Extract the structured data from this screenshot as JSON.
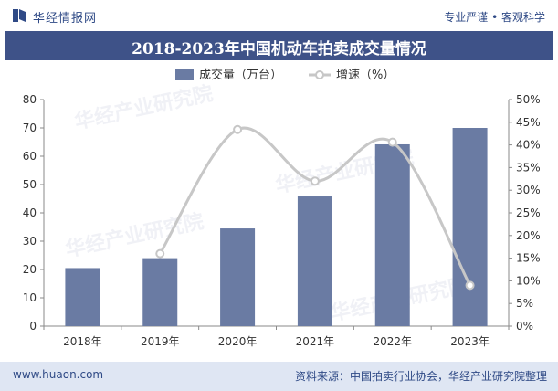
{
  "header": {
    "brand": "华经情报网",
    "slogan": "专业严谨 • 客观科学"
  },
  "footer": {
    "url": "www.huaon.com",
    "source": "资料来源：中国拍卖行业协会，华经产业研究院整理"
  },
  "watermark": {
    "text": "华经产业研究院"
  },
  "colors": {
    "title_bg": "#3e5288",
    "bar": "#6a7ba3",
    "line": "#c7c7c7",
    "marker_fill": "#ffffff",
    "brand": "#2f4a86",
    "footer_bg": "#dfe6f3"
  },
  "chart_data": {
    "type": "bar",
    "title": "2018-2023年中国机动车拍卖成交量情况",
    "categories": [
      "2018年",
      "2019年",
      "2020年",
      "2021年",
      "2022年",
      "2023年"
    ],
    "series": [
      {
        "name": "成交量（万台）",
        "type": "bar",
        "axis": "left",
        "values": [
          20.5,
          24,
          34.5,
          45.8,
          64.2,
          70
        ]
      },
      {
        "name": "增速（%）",
        "type": "line",
        "smooth": true,
        "axis": "right",
        "values": [
          null,
          16.0,
          43.4,
          32.0,
          40.6,
          9.0
        ]
      }
    ],
    "y_left": {
      "min": 0,
      "max": 80,
      "ticks": [
        "0",
        "10",
        "20",
        "30",
        "40",
        "50",
        "60",
        "70",
        "80"
      ]
    },
    "y_right": {
      "min": 0,
      "max": 50,
      "ticks": [
        "0%",
        "5%",
        "10%",
        "15%",
        "20%",
        "25%",
        "30%",
        "35%",
        "40%",
        "45%",
        "50%"
      ]
    },
    "legend_position": "top-center",
    "grid": false
  }
}
